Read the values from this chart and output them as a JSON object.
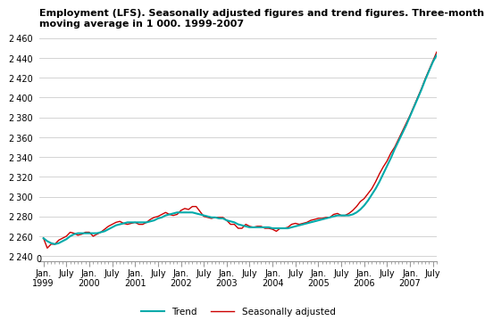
{
  "title": "Employment (LFS). Seasonally adjusted figures and trend figures. Three-month\nmoving average in 1 000. 1999-2007",
  "ylim": [
    2235,
    2465
  ],
  "yticks": [
    2240,
    2260,
    2280,
    2300,
    2320,
    2340,
    2360,
    2380,
    2400,
    2420,
    2440,
    2460
  ],
  "trend_color": "#00AAAA",
  "seasonal_color": "#CC0000",
  "background_color": "#ffffff",
  "grid_color": "#cccccc",
  "trend_data": [
    2258,
    2255,
    2253,
    2252,
    2253,
    2255,
    2257,
    2260,
    2262,
    2263,
    2263,
    2263,
    2263,
    2263,
    2263,
    2264,
    2265,
    2267,
    2269,
    2271,
    2272,
    2273,
    2274,
    2274,
    2274,
    2274,
    2274,
    2274,
    2275,
    2276,
    2278,
    2279,
    2281,
    2282,
    2283,
    2284,
    2284,
    2284,
    2284,
    2284,
    2283,
    2282,
    2281,
    2280,
    2279,
    2279,
    2278,
    2278,
    2276,
    2275,
    2274,
    2272,
    2271,
    2270,
    2269,
    2269,
    2269,
    2269,
    2269,
    2269,
    2268,
    2268,
    2268,
    2268,
    2268,
    2269,
    2270,
    2271,
    2272,
    2273,
    2274,
    2275,
    2276,
    2277,
    2278,
    2279,
    2280,
    2281,
    2281,
    2281,
    2281,
    2282,
    2284,
    2287,
    2291,
    2296,
    2302,
    2308,
    2315,
    2323,
    2331,
    2339,
    2348,
    2356,
    2364,
    2372,
    2381,
    2390,
    2399,
    2408,
    2418,
    2427,
    2436,
    2443
  ],
  "seasonal_data": [
    2258,
    2248,
    2252,
    2252,
    2256,
    2258,
    2260,
    2264,
    2263,
    2261,
    2262,
    2264,
    2264,
    2260,
    2262,
    2264,
    2267,
    2270,
    2272,
    2274,
    2275,
    2273,
    2272,
    2273,
    2274,
    2272,
    2272,
    2274,
    2277,
    2279,
    2280,
    2282,
    2284,
    2282,
    2281,
    2282,
    2286,
    2288,
    2287,
    2290,
    2290,
    2285,
    2280,
    2279,
    2278,
    2279,
    2279,
    2279,
    2276,
    2272,
    2272,
    2268,
    2268,
    2272,
    2270,
    2269,
    2270,
    2270,
    2268,
    2268,
    2267,
    2265,
    2268,
    2268,
    2269,
    2272,
    2273,
    2272,
    2273,
    2274,
    2276,
    2277,
    2278,
    2278,
    2279,
    2279,
    2282,
    2283,
    2281,
    2281,
    2283,
    2286,
    2290,
    2295,
    2298,
    2303,
    2308,
    2315,
    2323,
    2330,
    2336,
    2344,
    2350,
    2358,
    2366,
    2374,
    2382,
    2391,
    2400,
    2409,
    2419,
    2428,
    2437,
    2446
  ],
  "n_months": 104,
  "start_year": 1999
}
